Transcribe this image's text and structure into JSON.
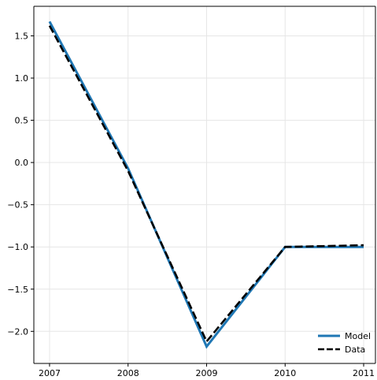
{
  "chart_data": {
    "type": "line",
    "title": "",
    "xlabel": "",
    "ylabel": "",
    "x": [
      "2007",
      "2008",
      "2009",
      "2010",
      "2011"
    ],
    "xlim": [
      2006.8,
      2011.15
    ],
    "ylim": [
      -2.38,
      1.85
    ],
    "yticks": [
      1.5,
      1.0,
      0.5,
      0.0,
      -0.5,
      -1.0,
      -1.5,
      -2.0
    ],
    "ytick_labels": [
      "1.5",
      "1.0",
      "0.5",
      "0.0",
      "−0.5",
      "−1.0",
      "−1.5",
      "−2.0"
    ],
    "grid": true,
    "legend_position": "bottom-right",
    "series": [
      {
        "name": "Model",
        "values": [
          1.67,
          -0.07,
          -2.18,
          -1.0,
          -1.0
        ],
        "color": "#1f77b4",
        "style": "solid"
      },
      {
        "name": "Data",
        "values": [
          1.62,
          -0.1,
          -2.12,
          -1.0,
          -0.98
        ],
        "color": "#000000",
        "style": "dashed"
      }
    ]
  }
}
